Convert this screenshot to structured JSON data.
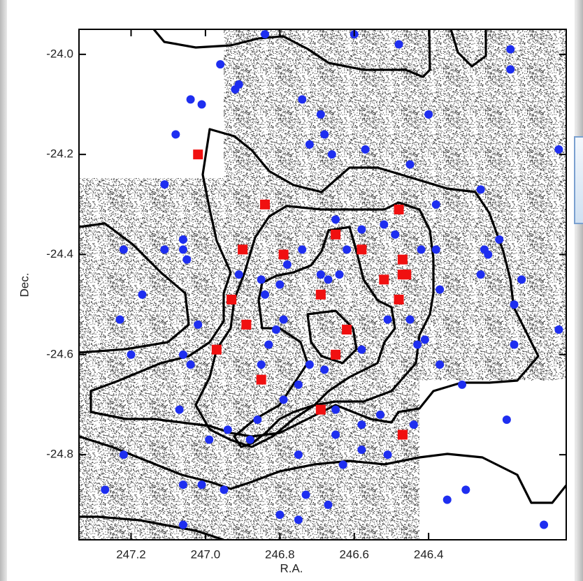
{
  "chart_data": {
    "type": "scatter",
    "xlabel": "R.A.",
    "ylabel": "Dec.",
    "xlim": [
      247.34,
      246.03
    ],
    "ylim": [
      -24.97,
      -23.95
    ],
    "xticks": [
      247.2,
      {
        "value": 247.0,
        "label": "247.0"
      },
      246.8,
      246.6,
      246.4
    ],
    "yticks": [
      {
        "value": -24.0,
        "label": "-24.0"
      },
      -24.2,
      -24.4,
      -24.6,
      -24.8
    ],
    "grid": false,
    "series": [
      {
        "color": "#1e2ef0",
        "marker": "circle",
        "x": [
          246.84,
          246.6,
          246.96,
          247.04,
          247.01,
          247.08,
          246.92,
          246.91,
          246.74,
          246.69,
          246.68,
          246.72,
          246.66,
          246.57,
          246.45,
          246.4,
          246.48,
          246.18,
          246.18,
          246.05,
          246.26,
          247.11,
          247.22,
          247.11,
          247.06,
          247.06,
          247.05,
          247.17,
          247.23,
          247.2,
          247.06,
          247.04,
          247.02,
          246.91,
          246.85,
          246.84,
          246.8,
          246.78,
          246.74,
          246.69,
          246.67,
          246.64,
          246.62,
          246.65,
          246.58,
          246.52,
          246.49,
          246.42,
          246.38,
          246.38,
          246.37,
          246.26,
          246.25,
          246.24,
          246.21,
          246.15,
          246.17,
          246.05,
          246.41,
          246.17,
          246.37,
          246.31,
          246.19,
          246.3,
          246.35,
          246.09,
          247.27,
          247.22,
          247.06,
          247.01,
          247.06,
          246.95,
          246.8,
          246.75,
          246.73,
          246.67,
          246.63,
          246.75,
          246.88,
          246.94,
          246.99,
          247.07,
          246.86,
          246.79,
          246.75,
          246.72,
          246.68,
          246.85,
          246.83,
          246.81,
          246.79,
          246.65,
          246.58,
          246.53,
          246.43,
          246.45,
          246.58,
          246.51,
          246.65,
          246.58,
          246.51,
          246.44
        ],
        "y": [
          -23.96,
          -23.96,
          -24.02,
          -24.09,
          -24.1,
          -24.16,
          -24.07,
          -24.06,
          -24.09,
          -24.12,
          -24.16,
          -24.18,
          -24.2,
          -24.19,
          -24.22,
          -24.12,
          -23.98,
          -23.99,
          -24.03,
          -24.19,
          -24.27,
          -24.26,
          -24.39,
          -24.39,
          -24.37,
          -24.39,
          -24.41,
          -24.48,
          -24.53,
          -24.6,
          -24.6,
          -24.62,
          -24.54,
          -24.44,
          -24.45,
          -24.48,
          -24.46,
          -24.42,
          -24.39,
          -24.44,
          -24.45,
          -24.44,
          -24.39,
          -24.33,
          -24.35,
          -24.34,
          -24.36,
          -24.39,
          -24.3,
          -24.39,
          -24.47,
          -24.44,
          -24.39,
          -24.4,
          -24.37,
          -24.45,
          -24.5,
          -24.55,
          -24.57,
          -24.58,
          -24.62,
          -24.66,
          -24.73,
          -24.87,
          -24.89,
          -24.94,
          -24.87,
          -24.8,
          -24.86,
          -24.86,
          -24.94,
          -24.87,
          -24.92,
          -24.93,
          -24.88,
          -24.9,
          -24.82,
          -24.8,
          -24.77,
          -24.75,
          -24.77,
          -24.71,
          -24.73,
          -24.69,
          -24.66,
          -24.62,
          -24.63,
          -24.62,
          -24.58,
          -24.55,
          -24.53,
          -24.71,
          -24.74,
          -24.72,
          -24.58,
          -24.53,
          -24.59,
          -24.53,
          -24.76,
          -24.79,
          -24.8,
          -24.74
        ]
      },
      {
        "color": "#f01010",
        "marker": "square",
        "x": [
          247.02,
          246.84,
          246.9,
          246.79,
          246.93,
          246.69,
          246.89,
          246.97,
          246.65,
          246.58,
          246.48,
          246.47,
          246.52,
          246.47,
          246.46,
          246.48,
          246.62,
          246.65,
          246.85,
          246.69,
          246.47
        ],
        "y": [
          -24.2,
          -24.3,
          -24.39,
          -24.4,
          -24.49,
          -24.48,
          -24.54,
          -24.59,
          -24.36,
          -24.39,
          -24.31,
          -24.41,
          -24.45,
          -24.44,
          -24.44,
          -24.49,
          -24.55,
          -24.6,
          -24.65,
          -24.71,
          -24.76
        ]
      }
    ]
  }
}
